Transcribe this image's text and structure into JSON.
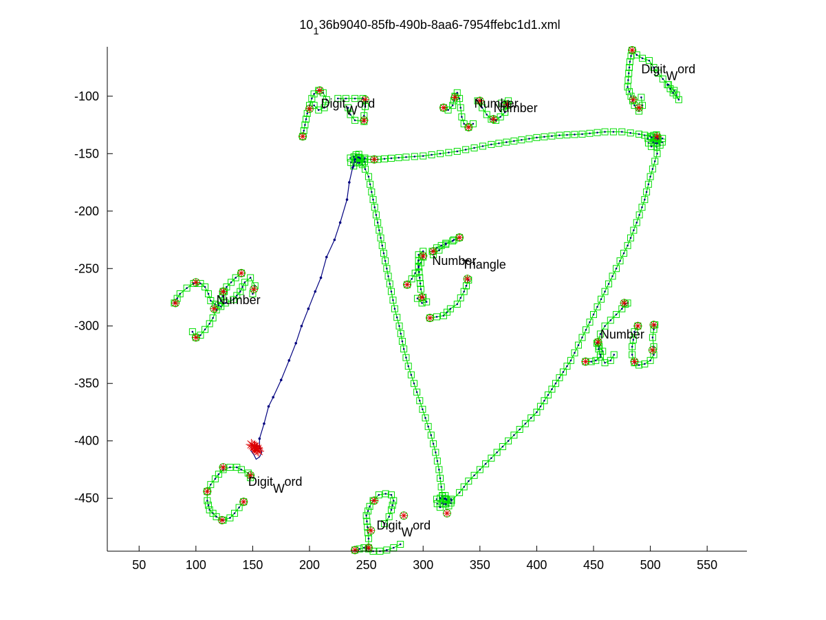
{
  "chart_data": {
    "type": "line",
    "title": "10_136b9040-85fb-490b-8aa6-7954ffebc1d1.xml",
    "title_main": "10",
    "title_sub": "1",
    "title_rest": "36b9040-85fb-490b-8aa6-7954ffebc1d1.xml",
    "xlim": [
      22,
      585
    ],
    "ylim": [
      -496,
      -57
    ],
    "y_reversed": true,
    "grid": false,
    "xticks": [
      50,
      100,
      150,
      200,
      250,
      300,
      350,
      400,
      450,
      500,
      550
    ],
    "yticks": [
      -100,
      -150,
      -200,
      -250,
      -300,
      -350,
      -400,
      -450
    ],
    "colors": {
      "green": "#00dd00",
      "blue": "#00007f",
      "red": "#dd0000",
      "axes": "#000000"
    },
    "blue_stroke": [
      [
        153,
        -408
      ],
      [
        156,
        -406
      ],
      [
        156,
        -398
      ],
      [
        160,
        -385
      ],
      [
        164,
        -370
      ],
      [
        168,
        -362
      ],
      [
        175,
        -347
      ],
      [
        182,
        -330
      ],
      [
        188,
        -315
      ],
      [
        193,
        -300
      ],
      [
        199,
        -285
      ],
      [
        205,
        -270
      ],
      [
        210,
        -258
      ],
      [
        215,
        -240
      ],
      [
        222,
        -225
      ],
      [
        227,
        -210
      ],
      [
        233,
        -190
      ],
      [
        235,
        -175
      ],
      [
        238,
        -162
      ],
      [
        240,
        -155
      ]
    ],
    "blue_loop": [
      [
        148,
        -408
      ],
      [
        151,
        -412
      ],
      [
        153,
        -416
      ],
      [
        156,
        -414
      ],
      [
        158,
        -410
      ],
      [
        156,
        -405
      ],
      [
        152,
        -404
      ]
    ],
    "red_star_clusters": [
      [
        150,
        -404
      ],
      [
        153,
        -406
      ],
      [
        154,
        -408
      ]
    ],
    "triangle": [
      [
        [
          240,
          -155
        ],
        [
          248,
          -155
        ],
        [
          260,
          -155
        ],
        [
          272,
          -154
        ],
        [
          285,
          -153
        ],
        [
          300,
          -152
        ],
        [
          315,
          -150
        ],
        [
          330,
          -148
        ],
        [
          345,
          -145
        ],
        [
          360,
          -142
        ],
        [
          380,
          -139
        ],
        [
          400,
          -136
        ],
        [
          420,
          -134
        ],
        [
          440,
          -133
        ],
        [
          460,
          -131
        ],
        [
          475,
          -131
        ],
        [
          490,
          -133
        ],
        [
          500,
          -135
        ],
        [
          505,
          -138
        ]
      ],
      [
        [
          505,
          -138
        ],
        [
          506,
          -150
        ],
        [
          500,
          -170
        ],
        [
          495,
          -190
        ],
        [
          488,
          -210
        ],
        [
          480,
          -230
        ],
        [
          470,
          -250
        ],
        [
          460,
          -270
        ],
        [
          450,
          -290
        ],
        [
          440,
          -310
        ],
        [
          430,
          -330
        ],
        [
          420,
          -345
        ],
        [
          410,
          -360
        ],
        [
          400,
          -375
        ],
        [
          390,
          -385
        ],
        [
          380,
          -395
        ],
        [
          370,
          -405
        ],
        [
          360,
          -415
        ],
        [
          350,
          -425
        ],
        [
          340,
          -435
        ],
        [
          332,
          -445
        ],
        [
          325,
          -452
        ],
        [
          318,
          -455
        ]
      ],
      [
        [
          318,
          -455
        ],
        [
          316,
          -440
        ],
        [
          314,
          -425
        ],
        [
          311,
          -410
        ],
        [
          307,
          -395
        ],
        [
          302,
          -380
        ],
        [
          297,
          -365
        ],
        [
          292,
          -350
        ],
        [
          287,
          -335
        ],
        [
          283,
          -320
        ],
        [
          279,
          -300
        ],
        [
          275,
          -285
        ],
        [
          272,
          -270
        ],
        [
          268,
          -250
        ],
        [
          264,
          -230
        ],
        [
          260,
          -210
        ],
        [
          256,
          -190
        ],
        [
          252,
          -170
        ],
        [
          246,
          -157
        ],
        [
          240,
          -155
        ]
      ]
    ],
    "dense_clusters": [
      [
        243,
        -155
      ],
      [
        505,
        -138
      ],
      [
        319,
        -452
      ]
    ],
    "green_small": [
      [
        [
          194,
          -135
        ],
        [
          196,
          -125
        ],
        [
          198,
          -115
        ],
        [
          200,
          -108
        ],
        [
          202,
          -102
        ],
        [
          204,
          -98
        ],
        [
          208,
          -95
        ],
        [
          212,
          -97
        ],
        [
          215,
          -103
        ],
        [
          213,
          -110
        ],
        [
          208,
          -112
        ],
        [
          204,
          -108
        ]
      ],
      [
        [
          225,
          -102
        ],
        [
          232,
          -102
        ],
        [
          240,
          -102
        ],
        [
          247,
          -102
        ],
        [
          249,
          -109
        ],
        [
          248,
          -117
        ],
        [
          248,
          -122
        ],
        [
          240,
          -121
        ],
        [
          236,
          -116
        ],
        [
          234,
          -110
        ]
      ],
      [
        [
          318,
          -110
        ],
        [
          322,
          -112
        ],
        [
          326,
          -108
        ],
        [
          328,
          -100
        ],
        [
          330,
          -97
        ],
        [
          332,
          -102
        ],
        [
          333,
          -110
        ],
        [
          334,
          -118
        ],
        [
          336,
          -124
        ],
        [
          340,
          -127
        ],
        [
          344,
          -124
        ]
      ],
      [
        [
          348,
          -104
        ],
        [
          352,
          -110
        ],
        [
          356,
          -116
        ],
        [
          360,
          -120
        ],
        [
          364,
          -121
        ],
        [
          368,
          -118
        ],
        [
          372,
          -114
        ],
        [
          374,
          -108
        ],
        [
          375,
          -104
        ],
        [
          369,
          -106
        ]
      ],
      [
        [
          484,
          -60
        ],
        [
          488,
          -64
        ],
        [
          493,
          -67
        ],
        [
          499,
          -69
        ],
        [
          503,
          -75
        ],
        [
          507,
          -80
        ],
        [
          511,
          -85
        ],
        [
          516,
          -90
        ],
        [
          521,
          -95
        ],
        [
          525,
          -103
        ],
        [
          520,
          -97
        ],
        [
          515,
          -90
        ]
      ],
      [
        [
          484,
          -60
        ],
        [
          482,
          -70
        ],
        [
          481,
          -80
        ],
        [
          480,
          -92
        ],
        [
          483,
          -100
        ],
        [
          486,
          -108
        ],
        [
          490,
          -113
        ],
        [
          493,
          -108
        ],
        [
          492,
          -101
        ]
      ],
      [
        [
          81,
          -280
        ],
        [
          86,
          -272
        ],
        [
          92,
          -267
        ],
        [
          98,
          -263
        ],
        [
          104,
          -263
        ],
        [
          108,
          -266
        ],
        [
          111,
          -272
        ],
        [
          113,
          -278
        ],
        [
          117,
          -281
        ],
        [
          122,
          -283
        ],
        [
          126,
          -280
        ],
        [
          133,
          -277
        ],
        [
          139,
          -270
        ],
        [
          143,
          -262
        ],
        [
          148,
          -258
        ],
        [
          152,
          -265
        ],
        [
          150,
          -272
        ]
      ],
      [
        [
          125,
          -270
        ],
        [
          122,
          -278
        ],
        [
          118,
          -286
        ],
        [
          115,
          -293
        ],
        [
          112,
          -298
        ],
        [
          108,
          -303
        ],
        [
          104,
          -308
        ],
        [
          100,
          -310
        ],
        [
          97,
          -305
        ]
      ],
      [
        [
          140,
          -254
        ],
        [
          135,
          -258
        ],
        [
          131,
          -262
        ],
        [
          127,
          -266
        ],
        [
          124,
          -270
        ]
      ],
      [
        [
          286,
          -264
        ],
        [
          290,
          -259
        ],
        [
          293,
          -254
        ],
        [
          296,
          -249
        ],
        [
          298,
          -245
        ],
        [
          300,
          -240
        ],
        [
          300,
          -235
        ],
        [
          296,
          -238
        ],
        [
          296,
          -248
        ],
        [
          297,
          -258
        ],
        [
          298,
          -268
        ],
        [
          300,
          -275
        ],
        [
          303,
          -279
        ],
        [
          299,
          -280
        ],
        [
          295,
          -276
        ]
      ],
      [
        [
          308,
          -235
        ],
        [
          312,
          -232
        ],
        [
          316,
          -230
        ],
        [
          320,
          -228
        ],
        [
          326,
          -226
        ],
        [
          332,
          -223
        ],
        [
          327,
          -225
        ],
        [
          320,
          -229
        ],
        [
          314,
          -234
        ],
        [
          309,
          -238
        ]
      ],
      [
        [
          306,
          -293
        ],
        [
          312,
          -292
        ],
        [
          318,
          -291
        ],
        [
          324,
          -285
        ],
        [
          330,
          -281
        ],
        [
          336,
          -270
        ],
        [
          340,
          -260
        ],
        [
          338,
          -265
        ]
      ],
      [
        [
          443,
          -331
        ],
        [
          448,
          -331
        ],
        [
          452,
          -330
        ],
        [
          456,
          -327
        ],
        [
          458,
          -322
        ],
        [
          455,
          -318
        ],
        [
          454,
          -314
        ],
        [
          456,
          -307
        ],
        [
          460,
          -300
        ],
        [
          465,
          -295
        ],
        [
          470,
          -290
        ],
        [
          475,
          -285
        ],
        [
          478,
          -281
        ],
        [
          480,
          -280
        ]
      ],
      [
        [
          453,
          -315
        ],
        [
          456,
          -325
        ],
        [
          460,
          -332
        ],
        [
          465,
          -330
        ],
        [
          468,
          -325
        ]
      ],
      [
        [
          489,
          -300
        ],
        [
          486,
          -305
        ],
        [
          485,
          -312
        ],
        [
          484,
          -318
        ],
        [
          484,
          -325
        ],
        [
          486,
          -332
        ],
        [
          490,
          -334
        ],
        [
          495,
          -333
        ],
        [
          500,
          -330
        ],
        [
          503,
          -325
        ],
        [
          503,
          -318
        ],
        [
          502,
          -310
        ],
        [
          503,
          -303
        ],
        [
          504,
          -299
        ]
      ],
      [
        [
          110,
          -444
        ],
        [
          113,
          -438
        ],
        [
          117,
          -433
        ],
        [
          120,
          -429
        ],
        [
          124,
          -425
        ],
        [
          130,
          -423
        ],
        [
          136,
          -423
        ],
        [
          140,
          -425
        ],
        [
          146,
          -428
        ],
        [
          148,
          -432
        ]
      ],
      [
        [
          110,
          -444
        ],
        [
          110,
          -452
        ],
        [
          112,
          -460
        ],
        [
          118,
          -466
        ],
        [
          124,
          -469
        ],
        [
          130,
          -467
        ],
        [
          134,
          -463
        ],
        [
          138,
          -458
        ],
        [
          142,
          -453
        ]
      ],
      [
        [
          240,
          -495
        ],
        [
          244,
          -494
        ],
        [
          248,
          -493
        ],
        [
          252,
          -494
        ],
        [
          256,
          -496
        ],
        [
          262,
          -496
        ],
        [
          268,
          -495
        ],
        [
          274,
          -493
        ],
        [
          280,
          -490
        ]
      ],
      [
        [
          252,
          -493
        ],
        [
          252,
          -485
        ],
        [
          251,
          -475
        ],
        [
          250,
          -465
        ],
        [
          253,
          -457
        ],
        [
          256,
          -452
        ],
        [
          261,
          -447
        ],
        [
          267,
          -446
        ],
        [
          272,
          -447
        ],
        [
          274,
          -452
        ],
        [
          272,
          -460
        ],
        [
          270,
          -466
        ],
        [
          266,
          -472
        ]
      ]
    ],
    "red_markers": [
      [
        209,
        -95
      ],
      [
        249,
        -103
      ],
      [
        248,
        -121
      ],
      [
        200,
        -111
      ],
      [
        194,
        -135
      ],
      [
        257,
        -155
      ],
      [
        318,
        -110
      ],
      [
        328,
        -101
      ],
      [
        340,
        -127
      ],
      [
        350,
        -104
      ],
      [
        362,
        -120
      ],
      [
        374,
        -107
      ],
      [
        484,
        -60
      ],
      [
        485,
        -103
      ],
      [
        490,
        -110
      ],
      [
        506,
        -135
      ],
      [
        82,
        -280
      ],
      [
        100,
        -262
      ],
      [
        124,
        -270
      ],
      [
        140,
        -254
      ],
      [
        151,
        -268
      ],
      [
        100,
        -310
      ],
      [
        116,
        -285
      ],
      [
        300,
        -239
      ],
      [
        286,
        -264
      ],
      [
        309,
        -235
      ],
      [
        332,
        -223
      ],
      [
        339,
        -259
      ],
      [
        299,
        -275
      ],
      [
        306,
        -293
      ],
      [
        443,
        -331
      ],
      [
        454,
        -314
      ],
      [
        477,
        -280
      ],
      [
        489,
        -300
      ],
      [
        486,
        -331
      ],
      [
        503,
        -299
      ],
      [
        502,
        -321
      ],
      [
        110,
        -444
      ],
      [
        124,
        -423
      ],
      [
        142,
        -453
      ],
      [
        148,
        -430
      ],
      [
        257,
        -452
      ],
      [
        240,
        -495
      ],
      [
        252,
        -493
      ],
      [
        321,
        -463
      ],
      [
        283,
        -465
      ],
      [
        123,
        -469
      ],
      [
        254,
        -478
      ]
    ],
    "annotations": [
      {
        "x": 210,
        "y": -110,
        "main": "Digit",
        "sub": "W",
        "rest": "ord"
      },
      {
        "x": 345,
        "y": -110,
        "main": "Number",
        "sub": "",
        "rest": ""
      },
      {
        "x": 362,
        "y": -114,
        "main": "Number",
        "sub": "",
        "rest": ""
      },
      {
        "x": 492,
        "y": -80,
        "main": "Digit",
        "sub": "W",
        "rest": "ord"
      },
      {
        "x": 118,
        "y": -281,
        "main": "Number",
        "sub": "",
        "rest": ""
      },
      {
        "x": 308,
        "y": -247,
        "main": "Number",
        "sub": "",
        "rest": ""
      },
      {
        "x": 334,
        "y": -250,
        "main": "Triangle",
        "sub": "",
        "rest": ""
      },
      {
        "x": 456,
        "y": -311,
        "main": "Number",
        "sub": "",
        "rest": ""
      },
      {
        "x": 146,
        "y": -439,
        "main": "Digit",
        "sub": "W",
        "rest": "ord"
      },
      {
        "x": 259,
        "y": -477,
        "main": "Digit",
        "sub": "W",
        "rest": "ord"
      }
    ]
  }
}
